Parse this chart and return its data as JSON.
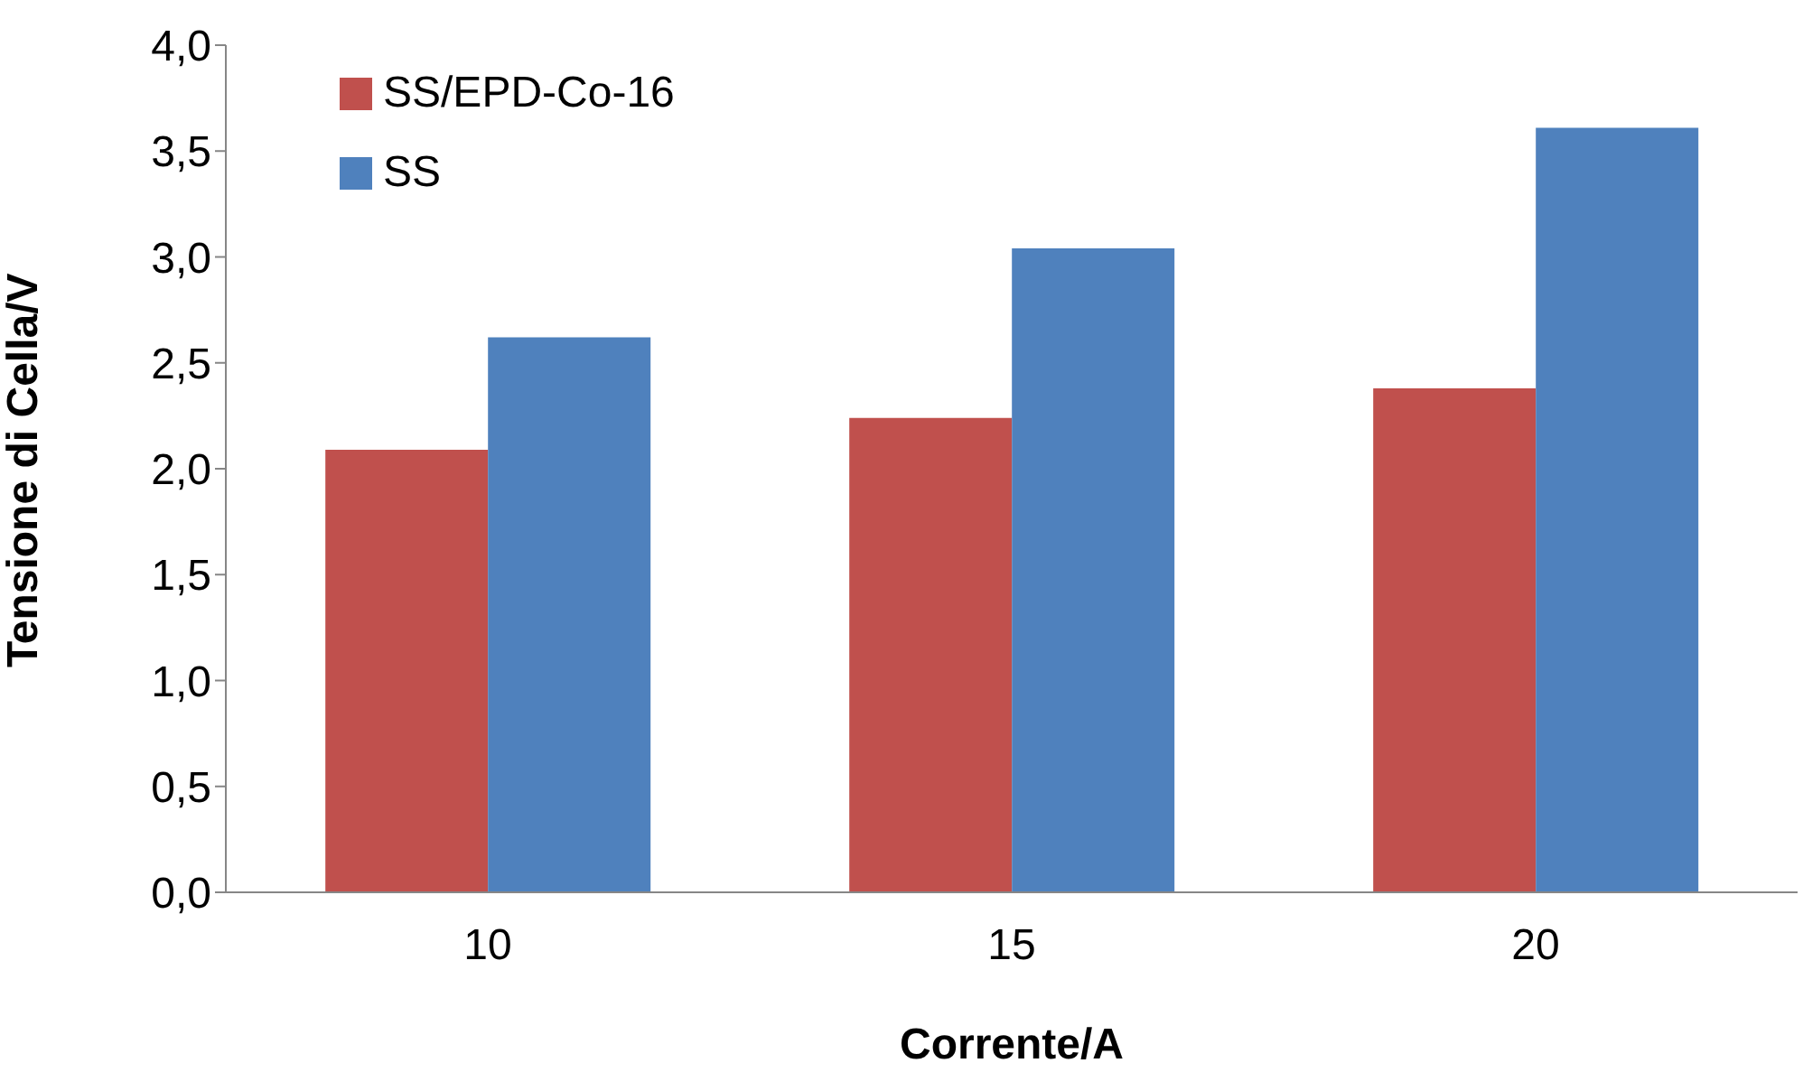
{
  "chart_data": {
    "type": "bar",
    "xlabel": "Corrente/A",
    "ylabel": "Tensione di Cella/V",
    "categories": [
      "10",
      "15",
      "20"
    ],
    "series": [
      {
        "name": "SS/EPD-Co-16",
        "color": "#c0504d",
        "values": [
          2.09,
          2.24,
          2.38
        ]
      },
      {
        "name": "SS",
        "color": "#4f81bd",
        "values": [
          2.62,
          3.04,
          3.61
        ]
      }
    ],
    "ylim": [
      0,
      4
    ],
    "yticks": [
      {
        "value": 0,
        "label": "0,0"
      },
      {
        "value": 0.5,
        "label": "0,5"
      },
      {
        "value": 1,
        "label": "1,0"
      },
      {
        "value": 1.5,
        "label": "1,5"
      },
      {
        "value": 2,
        "label": "2,0"
      },
      {
        "value": 2.5,
        "label": "2,5"
      },
      {
        "value": 3,
        "label": "3,0"
      },
      {
        "value": 3.5,
        "label": "3,5"
      },
      {
        "value": 4,
        "label": "4,0"
      }
    ],
    "grid": false,
    "legend": "top left"
  }
}
